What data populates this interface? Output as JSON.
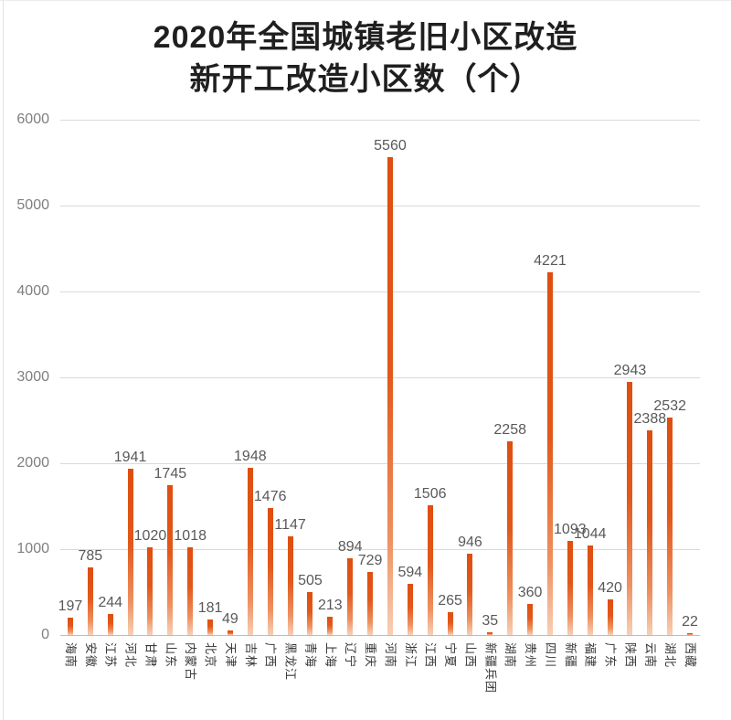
{
  "title": {
    "line1": "2020年全国城镇老旧小区改造",
    "line2": "新开工改造小区数（个）"
  },
  "chart_data": {
    "type": "bar",
    "title": "2020年全国城镇老旧小区改造 新开工改造小区数（个）",
    "categories": [
      "海南",
      "安徽",
      "江苏",
      "河北",
      "甘肃",
      "山东",
      "内蒙古",
      "北京",
      "天津",
      "吉林",
      "广西",
      "黑龙江",
      "青海",
      "上海",
      "辽宁",
      "重庆",
      "河南",
      "浙江",
      "江西",
      "宁夏",
      "山西",
      "新疆兵团",
      "湖南",
      "贵州",
      "四川",
      "新疆",
      "福建",
      "广东",
      "陕西",
      "云南",
      "湖北",
      "西藏"
    ],
    "values": [
      197,
      785,
      244,
      1941,
      1020,
      1745,
      1018,
      181,
      49,
      1948,
      1476,
      1147,
      505,
      213,
      894,
      729,
      5560,
      594,
      1506,
      265,
      946,
      35,
      2258,
      360,
      4221,
      1093,
      1044,
      420,
      2943,
      2388,
      2532,
      22
    ],
    "xlabel": "",
    "ylabel": "",
    "ylim": [
      0,
      6000
    ],
    "yticks": [
      0,
      1000,
      2000,
      3000,
      4000,
      5000,
      6000
    ],
    "grid": true,
    "legend": "none",
    "data_labels": true,
    "colors": {
      "bar_top": "#df4e0f",
      "bar_mid": "#e2581a",
      "bar_low": "#ee9160",
      "bar_bottom": "#f8cfb6",
      "value_label": "#595959",
      "axis_tick_label": "#7f7f7f",
      "category_label": "#383838",
      "gridline": "#d9d9d9",
      "axis_line": "#bdbdbd",
      "title_color": "#1f1f1f"
    }
  }
}
